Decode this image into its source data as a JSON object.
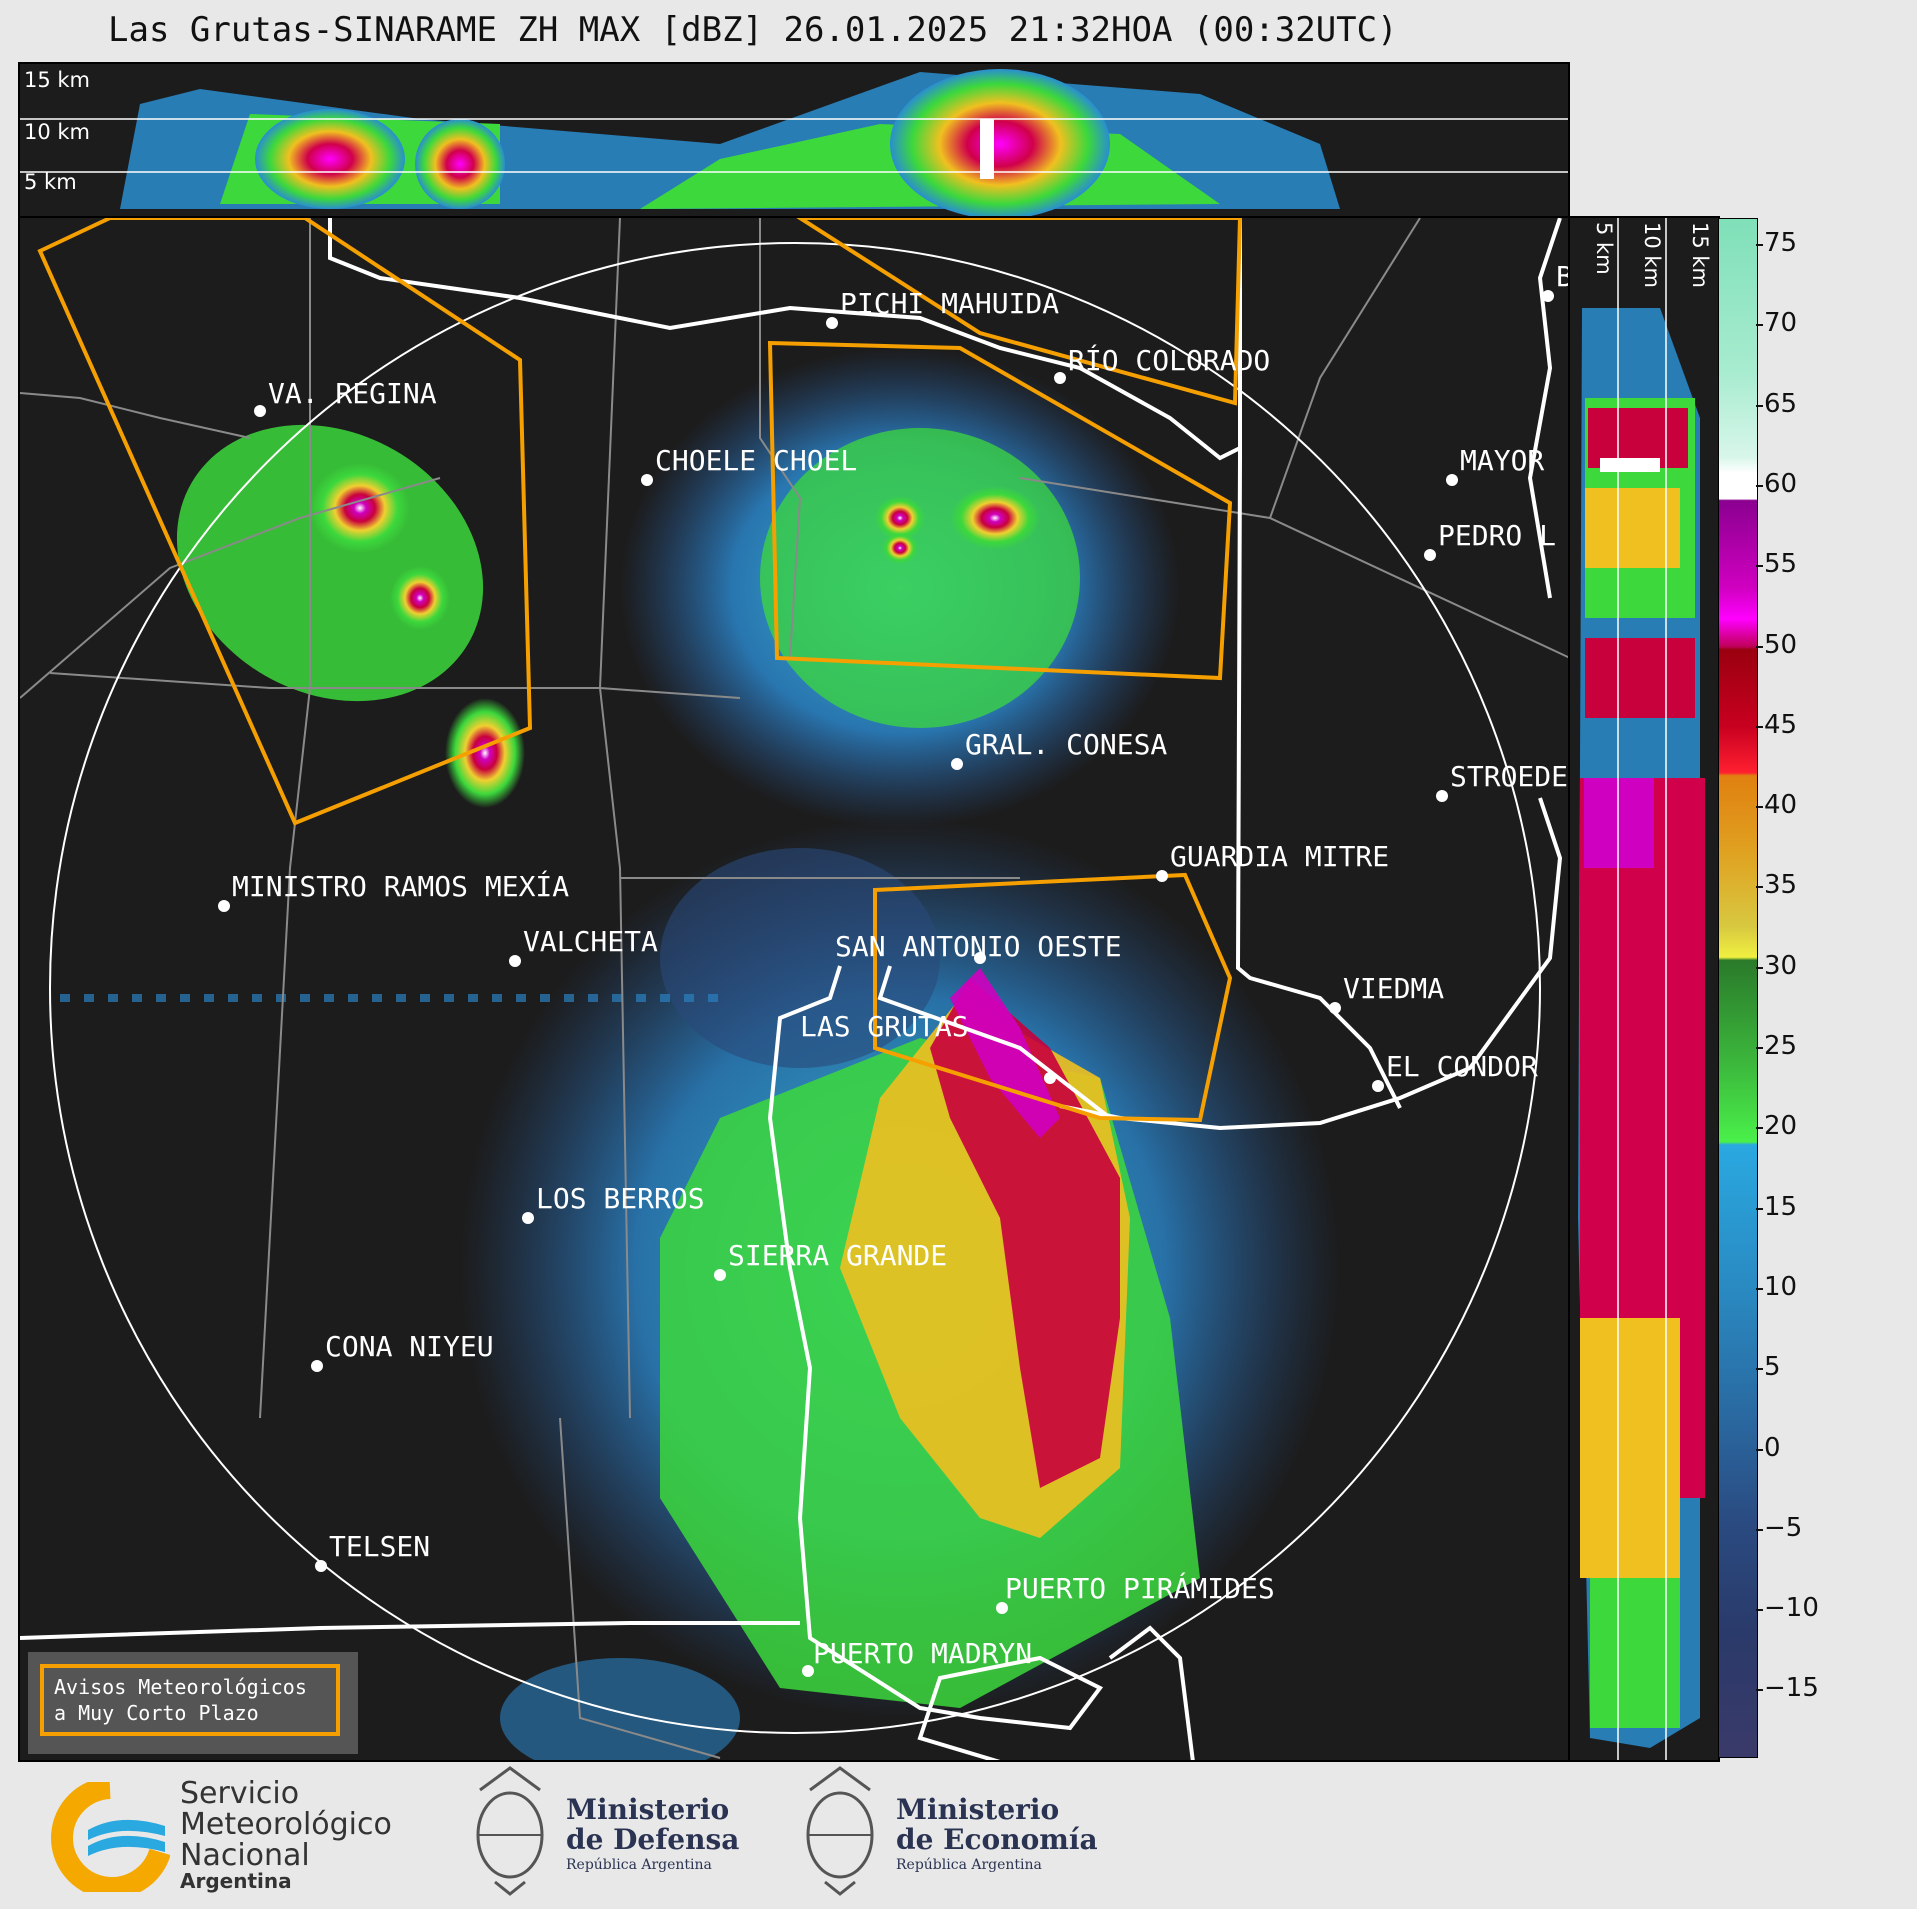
{
  "title": "Las Grutas-SINARAME ZH MAX [dBZ] 26.01.2025 21:32HOA (00:32UTC)",
  "top_panel": {
    "height_labels": [
      "15 km",
      "10 km",
      "5 km"
    ]
  },
  "side_panel": {
    "height_labels": [
      "5 km",
      "10 km",
      "15 km"
    ]
  },
  "colorbar": {
    "ticks": [
      "75",
      "70",
      "65",
      "60",
      "55",
      "50",
      "45",
      "40",
      "35",
      "30",
      "25",
      "20",
      "15",
      "10",
      "5",
      "0",
      "−5",
      "−10",
      "−15"
    ]
  },
  "cities": {
    "pichi_mahuida": "PICHI MAHUIDA",
    "rio_colorado": "RÍO COLORADO",
    "va_regina": "VA. REGINA",
    "choele_choel": "CHOELE CHOEL",
    "mayor": "MAYOR",
    "pedro_l": "PEDRO L",
    "gral_conesa": "GRAL. CONESA",
    "stroeder": "STROEDE",
    "guardia_mitre": "GUARDIA MITRE",
    "ministro_ramos_mexia": "MINISTRO RAMOS MEXÍA",
    "valcheta": "VALCHETA",
    "san_antonio_oeste": "SAN ANTONIO OESTE",
    "viedma": "VIEDMA",
    "las_grutas": "LAS GRUTAS",
    "el_condor": "EL CONDOR",
    "los_berros": "LOS BERROS",
    "sierra_grande": "SIERRA GRANDE",
    "cona_niyeu": "CONA NIYEU",
    "telsen": "TELSEN",
    "puerto_piramides": "PUERTO PIRÁMIDES",
    "puerto_madryn": "PUERTO MADRYN",
    "b_edge": "B"
  },
  "warning_legend": {
    "line1": "Avisos Meteorológicos",
    "line2": "a Muy Corto Plazo"
  },
  "logos": {
    "smn": {
      "line1": "Servicio",
      "line2": "Meteorológico",
      "line3": "Nacional",
      "line4": "Argentina"
    },
    "defensa": {
      "line1": "Ministerio",
      "line2": "de Defensa",
      "line3": "República Argentina"
    },
    "economia": {
      "line1": "Ministerio",
      "line2": "de Economía",
      "line3": "República Argentina"
    }
  },
  "colors": {
    "warning": "#f5a000",
    "background": "#1c1c1c"
  }
}
